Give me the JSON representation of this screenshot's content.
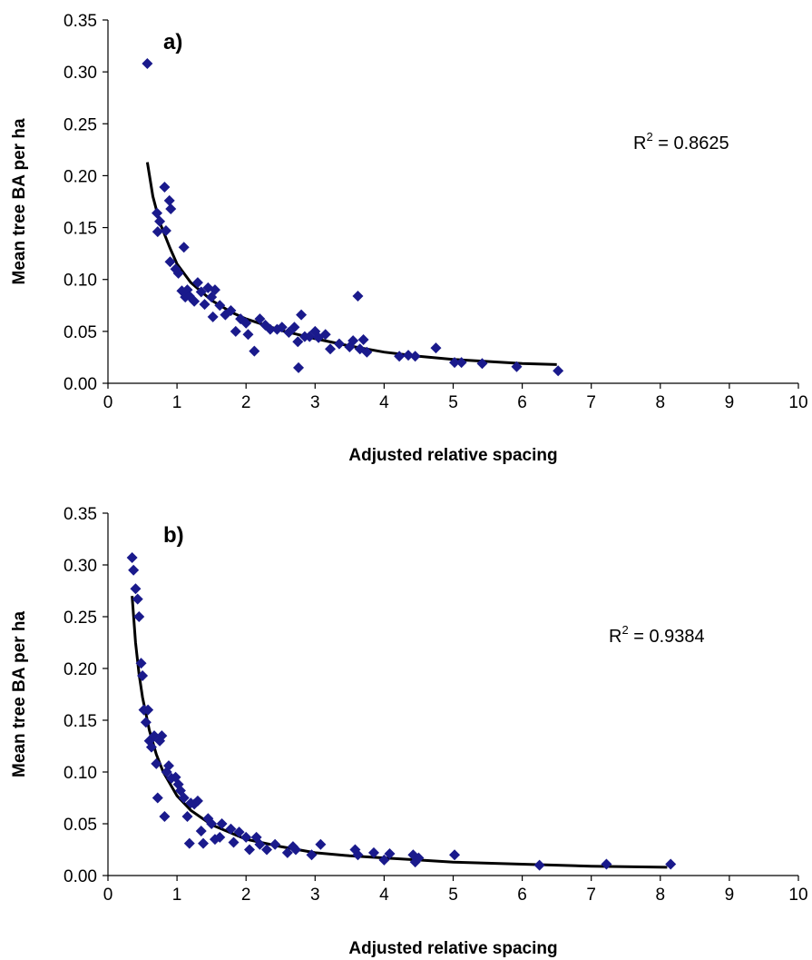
{
  "chart_data": [
    {
      "type": "scatter",
      "panel_label": "a)",
      "xlabel": "Adjusted relative spacing",
      "ylabel": "Mean tree BA per ha",
      "xlim": [
        0,
        10
      ],
      "ylim": [
        0,
        0.35
      ],
      "xticks": [
        "0",
        "1",
        "2",
        "3",
        "4",
        "5",
        "6",
        "7",
        "8",
        "9",
        "10"
      ],
      "yticks": [
        "0.00",
        "0.05",
        "0.10",
        "0.15",
        "0.20",
        "0.25",
        "0.30",
        "0.35"
      ],
      "grid": false,
      "annotation": {
        "r_base": "R",
        "r_sup": "2",
        "r_value": " = 0.8625"
      },
      "marker_color": "#1a1a8c",
      "line_color": "#000000",
      "points": [
        [
          0.57,
          0.308
        ],
        [
          0.71,
          0.164
        ],
        [
          0.72,
          0.146
        ],
        [
          0.75,
          0.156
        ],
        [
          0.82,
          0.189
        ],
        [
          0.84,
          0.147
        ],
        [
          0.89,
          0.176
        ],
        [
          0.91,
          0.168
        ],
        [
          0.9,
          0.117
        ],
        [
          0.98,
          0.11
        ],
        [
          1.02,
          0.106
        ],
        [
          1.07,
          0.089
        ],
        [
          1.1,
          0.131
        ],
        [
          1.12,
          0.083
        ],
        [
          1.15,
          0.09
        ],
        [
          1.18,
          0.084
        ],
        [
          1.25,
          0.079
        ],
        [
          1.3,
          0.097
        ],
        [
          1.35,
          0.088
        ],
        [
          1.4,
          0.076
        ],
        [
          1.45,
          0.092
        ],
        [
          1.5,
          0.083
        ],
        [
          1.52,
          0.064
        ],
        [
          1.55,
          0.09
        ],
        [
          1.62,
          0.075
        ],
        [
          1.7,
          0.066
        ],
        [
          1.78,
          0.07
        ],
        [
          1.85,
          0.05
        ],
        [
          1.92,
          0.062
        ],
        [
          2.0,
          0.058
        ],
        [
          2.03,
          0.047
        ],
        [
          2.12,
          0.031
        ],
        [
          2.2,
          0.062
        ],
        [
          2.28,
          0.056
        ],
        [
          2.35,
          0.052
        ],
        [
          2.45,
          0.052
        ],
        [
          2.52,
          0.054
        ],
        [
          2.62,
          0.049
        ],
        [
          2.7,
          0.054
        ],
        [
          2.75,
          0.04
        ],
        [
          2.76,
          0.015
        ],
        [
          2.8,
          0.066
        ],
        [
          2.85,
          0.045
        ],
        [
          2.92,
          0.045
        ],
        [
          3.0,
          0.05
        ],
        [
          3.05,
          0.044
        ],
        [
          3.15,
          0.047
        ],
        [
          3.22,
          0.033
        ],
        [
          3.35,
          0.038
        ],
        [
          3.5,
          0.035
        ],
        [
          3.55,
          0.041
        ],
        [
          3.62,
          0.084
        ],
        [
          3.65,
          0.033
        ],
        [
          3.7,
          0.042
        ],
        [
          3.75,
          0.03
        ],
        [
          4.22,
          0.026
        ],
        [
          4.35,
          0.027
        ],
        [
          4.45,
          0.026
        ],
        [
          4.75,
          0.034
        ],
        [
          5.02,
          0.02
        ],
        [
          5.12,
          0.02
        ],
        [
          5.42,
          0.019
        ],
        [
          5.92,
          0.016
        ],
        [
          6.52,
          0.012
        ]
      ],
      "fit": [
        [
          0.57,
          0.213
        ],
        [
          0.65,
          0.18
        ],
        [
          0.75,
          0.155
        ],
        [
          0.9,
          0.13
        ],
        [
          1.0,
          0.115
        ],
        [
          1.2,
          0.097
        ],
        [
          1.5,
          0.08
        ],
        [
          1.8,
          0.068
        ],
        [
          2.0,
          0.062
        ],
        [
          2.5,
          0.051
        ],
        [
          3.0,
          0.043
        ],
        [
          3.5,
          0.036
        ],
        [
          4.0,
          0.03
        ],
        [
          4.5,
          0.026
        ],
        [
          5.0,
          0.023
        ],
        [
          5.5,
          0.021
        ],
        [
          6.0,
          0.019
        ],
        [
          6.5,
          0.018
        ]
      ]
    },
    {
      "type": "scatter",
      "panel_label": "b)",
      "xlabel": "Adjusted relative spacing",
      "ylabel": "Mean tree BA per ha",
      "xlim": [
        0,
        10
      ],
      "ylim": [
        0,
        0.35
      ],
      "xticks": [
        "0",
        "1",
        "2",
        "3",
        "4",
        "5",
        "6",
        "7",
        "8",
        "9",
        "10"
      ],
      "yticks": [
        "0.00",
        "0.05",
        "0.10",
        "0.15",
        "0.20",
        "0.25",
        "0.30",
        "0.35"
      ],
      "grid": false,
      "annotation": {
        "r_base": "R",
        "r_sup": "2",
        "r_value": " = 0.9384"
      },
      "marker_color": "#1a1a8c",
      "line_color": "#000000",
      "points": [
        [
          0.35,
          0.307
        ],
        [
          0.37,
          0.295
        ],
        [
          0.4,
          0.277
        ],
        [
          0.43,
          0.267
        ],
        [
          0.45,
          0.25
        ],
        [
          0.48,
          0.205
        ],
        [
          0.5,
          0.193
        ],
        [
          0.52,
          0.16
        ],
        [
          0.55,
          0.148
        ],
        [
          0.58,
          0.16
        ],
        [
          0.6,
          0.13
        ],
        [
          0.63,
          0.124
        ],
        [
          0.67,
          0.135
        ],
        [
          0.7,
          0.108
        ],
        [
          0.72,
          0.075
        ],
        [
          0.75,
          0.13
        ],
        [
          0.78,
          0.135
        ],
        [
          0.82,
          0.057
        ],
        [
          0.85,
          0.1
        ],
        [
          0.88,
          0.106
        ],
        [
          0.92,
          0.094
        ],
        [
          0.98,
          0.095
        ],
        [
          1.02,
          0.088
        ],
        [
          1.05,
          0.082
        ],
        [
          1.1,
          0.075
        ],
        [
          1.15,
          0.057
        ],
        [
          1.18,
          0.031
        ],
        [
          1.2,
          0.07
        ],
        [
          1.25,
          0.069
        ],
        [
          1.3,
          0.072
        ],
        [
          1.35,
          0.043
        ],
        [
          1.38,
          0.031
        ],
        [
          1.45,
          0.055
        ],
        [
          1.5,
          0.05
        ],
        [
          1.55,
          0.035
        ],
        [
          1.62,
          0.037
        ],
        [
          1.65,
          0.05
        ],
        [
          1.78,
          0.045
        ],
        [
          1.82,
          0.032
        ],
        [
          1.9,
          0.042
        ],
        [
          2.0,
          0.037
        ],
        [
          2.05,
          0.025
        ],
        [
          2.15,
          0.037
        ],
        [
          2.2,
          0.03
        ],
        [
          2.3,
          0.025
        ],
        [
          2.42,
          0.03
        ],
        [
          2.6,
          0.022
        ],
        [
          2.68,
          0.028
        ],
        [
          2.72,
          0.025
        ],
        [
          2.95,
          0.02
        ],
        [
          3.08,
          0.03
        ],
        [
          3.58,
          0.025
        ],
        [
          3.62,
          0.02
        ],
        [
          3.85,
          0.022
        ],
        [
          4.0,
          0.015
        ],
        [
          4.08,
          0.021
        ],
        [
          4.42,
          0.02
        ],
        [
          4.45,
          0.013
        ],
        [
          4.5,
          0.017
        ],
        [
          5.02,
          0.02
        ],
        [
          6.25,
          0.01
        ],
        [
          7.22,
          0.011
        ],
        [
          8.15,
          0.011
        ]
      ],
      "fit": [
        [
          0.35,
          0.27
        ],
        [
          0.4,
          0.225
        ],
        [
          0.45,
          0.195
        ],
        [
          0.5,
          0.172
        ],
        [
          0.6,
          0.14
        ],
        [
          0.7,
          0.117
        ],
        [
          0.8,
          0.1
        ],
        [
          1.0,
          0.077
        ],
        [
          1.2,
          0.063
        ],
        [
          1.5,
          0.049
        ],
        [
          2.0,
          0.035
        ],
        [
          2.5,
          0.028
        ],
        [
          3.0,
          0.022
        ],
        [
          3.5,
          0.019
        ],
        [
          4.0,
          0.017
        ],
        [
          4.5,
          0.015
        ],
        [
          5.0,
          0.013
        ],
        [
          6.0,
          0.011
        ],
        [
          7.0,
          0.009
        ],
        [
          8.1,
          0.008
        ]
      ]
    }
  ]
}
